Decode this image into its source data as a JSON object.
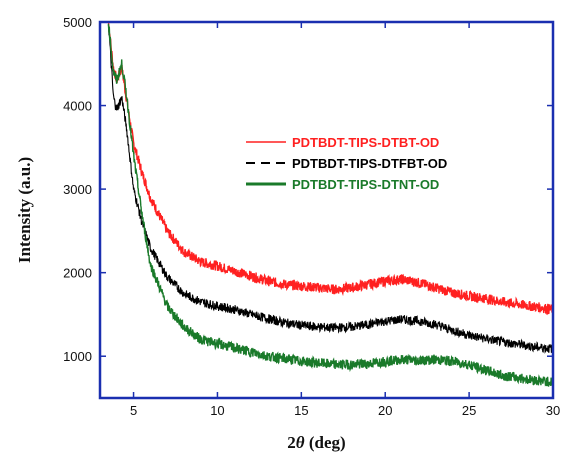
{
  "chart_data": {
    "type": "line",
    "title": "",
    "xlabel_parts": {
      "main": "2",
      "theta": "θ",
      "rest": " (deg)"
    },
    "ylabel": "Intensity (a.u.)",
    "xlim": [
      3,
      30
    ],
    "ylim": [
      500,
      5000
    ],
    "xticks": [
      5,
      10,
      15,
      20,
      25,
      30
    ],
    "yticks": [
      1000,
      2000,
      3000,
      4000,
      5000
    ],
    "grid": false,
    "legend_position": "upper-right",
    "series": [
      {
        "name": "PDTBDT-TIPS-DTBT-OD",
        "color": "#ff2020",
        "dash": "solid",
        "x": [
          3.5,
          3.8,
          4.0,
          4.3,
          4.6,
          5.0,
          5.5,
          6.0,
          7.0,
          8.0,
          9.0,
          10.0,
          11.0,
          12.0,
          13.0,
          14.0,
          15.0,
          16.0,
          17.0,
          18.0,
          19.0,
          20.0,
          21.0,
          22.0,
          23.0,
          24.0,
          25.0,
          26.0,
          27.0,
          28.0,
          29.0,
          30.0
        ],
        "y": [
          5000,
          4450,
          4300,
          4450,
          4050,
          3550,
          3200,
          2900,
          2500,
          2250,
          2130,
          2080,
          2020,
          1960,
          1900,
          1860,
          1840,
          1820,
          1800,
          1820,
          1860,
          1900,
          1920,
          1880,
          1820,
          1760,
          1720,
          1690,
          1650,
          1620,
          1590,
          1560
        ]
      },
      {
        "name": "PDTBDT-TIPS-DTFBT-OD",
        "color": "#000000",
        "dash": "dashed",
        "x": [
          3.5,
          3.8,
          4.0,
          4.3,
          4.6,
          5.0,
          5.5,
          6.0,
          7.0,
          8.0,
          9.0,
          10.0,
          11.0,
          12.0,
          13.0,
          14.0,
          15.0,
          16.0,
          17.0,
          18.0,
          19.0,
          20.0,
          21.0,
          22.0,
          23.0,
          24.0,
          25.0,
          26.0,
          27.0,
          28.0,
          29.0,
          30.0
        ],
        "y": [
          5000,
          4100,
          3950,
          4100,
          3700,
          3000,
          2600,
          2300,
          1950,
          1750,
          1650,
          1600,
          1560,
          1500,
          1450,
          1400,
          1370,
          1350,
          1340,
          1350,
          1380,
          1420,
          1440,
          1420,
          1380,
          1310,
          1250,
          1210,
          1170,
          1140,
          1110,
          1090
        ]
      },
      {
        "name": "PDTBDT-TIPS-DTNT-OD",
        "color": "#1a7a2a",
        "dash": "solid",
        "x": [
          3.5,
          3.8,
          4.0,
          4.3,
          4.6,
          5.0,
          5.5,
          6.0,
          7.0,
          8.0,
          9.0,
          10.0,
          11.0,
          12.0,
          13.0,
          14.0,
          15.0,
          16.0,
          17.0,
          18.0,
          19.0,
          20.0,
          21.0,
          22.0,
          23.0,
          24.0,
          25.0,
          26.0,
          27.0,
          28.0,
          29.0,
          30.0
        ],
        "y": [
          5000,
          4400,
          4300,
          4500,
          4100,
          3400,
          2700,
          2100,
          1600,
          1350,
          1200,
          1150,
          1100,
          1050,
          1000,
          970,
          940,
          920,
          900,
          900,
          910,
          940,
          960,
          950,
          960,
          940,
          900,
          830,
          770,
          740,
          710,
          690
        ]
      }
    ]
  }
}
